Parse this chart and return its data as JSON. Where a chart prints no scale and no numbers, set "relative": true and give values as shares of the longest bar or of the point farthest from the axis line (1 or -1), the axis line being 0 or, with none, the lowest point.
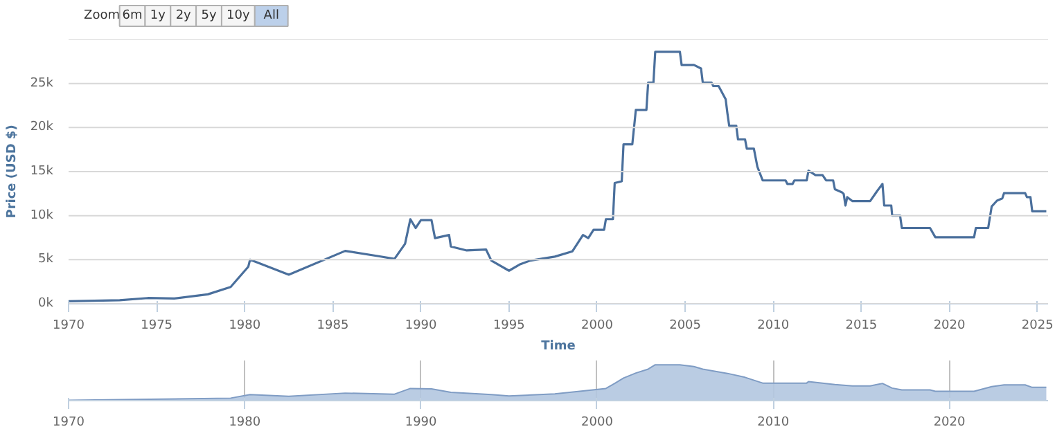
{
  "chart_data": [
    {
      "type": "line",
      "xlabel": "Time",
      "ylabel": "Price (USD $)",
      "annotations": [
        "Zoom",
        "6m",
        "1y",
        "2y",
        "5y",
        "10y",
        "All"
      ],
      "x": [
        1970,
        1972.9,
        1974.5,
        1976,
        1977.9,
        1979.2,
        1980.2,
        1980.3,
        1982.5,
        1985.7,
        1987.6,
        1988.5,
        1989.1,
        1989.4,
        1989.7,
        1990,
        1990.6,
        1990.8,
        1991.6,
        1991.7,
        1992.6,
        1993.7,
        1994,
        1995,
        1995.6,
        1996.2,
        1997.6,
        1998.6,
        1999.2,
        1999.5,
        1999.8,
        2000.4,
        2000.5,
        2000.9,
        2001,
        2001.4,
        2001.5,
        2002,
        2002.2,
        2002.8,
        2002.9,
        2003.2,
        2003.3,
        2004.7,
        2004.8,
        2005.5,
        2005.9,
        2006,
        2006.5,
        2006.6,
        2006.9,
        2007.3,
        2007.4,
        2007.5,
        2007.9,
        2008,
        2008.4,
        2008.5,
        2008.9,
        2009.1,
        2009.4,
        2010.7,
        2010.8,
        2011.1,
        2011.2,
        2011.9,
        2012,
        2012.4,
        2012.8,
        2013,
        2013.4,
        2013.5,
        2013.9,
        2014,
        2014.1,
        2014.2,
        2014.5,
        2015.5,
        2015.9,
        2016.2,
        2016.3,
        2016.7,
        2016.75,
        2017.2,
        2017.3,
        2018.9,
        2019.2,
        2021.4,
        2021.5,
        2022.2,
        2022.4,
        2022.7,
        2023,
        2023.1,
        2024.3,
        2024.4,
        2024.6,
        2024.7,
        2025.5
      ],
      "series": [
        {
          "color": "#4a6f9c",
          "values": [
            280,
            400,
            650,
            600,
            1070,
            1900,
            4200,
            5000,
            3300,
            6000,
            5400,
            5100,
            6800,
            9600,
            8600,
            9500,
            9500,
            7450,
            7800,
            6500,
            6050,
            6150,
            4900,
            3750,
            4450,
            4900,
            5350,
            5950,
            7800,
            7450,
            8400,
            8400,
            9600,
            9600,
            13700,
            13900,
            18100,
            18100,
            22000,
            22000,
            25100,
            25100,
            28600,
            28600,
            27100,
            27100,
            26700,
            25100,
            25100,
            24700,
            24700,
            23200,
            21600,
            20200,
            20200,
            18650,
            18650,
            17600,
            17600,
            15550,
            14000,
            14000,
            13600,
            13600,
            14000,
            14000,
            15100,
            14600,
            14600,
            14000,
            14000,
            13000,
            12650,
            12450,
            11150,
            12100,
            11650,
            11650,
            12800,
            13600,
            11150,
            11150,
            10000,
            10000,
            8600,
            8600,
            7550,
            7550,
            8600,
            8600,
            11050,
            11700,
            11950,
            12550,
            12550,
            12100,
            12100,
            10500,
            10500
          ]
        }
      ],
      "xlim": [
        1970,
        2025.6
      ],
      "xticks": [
        1970,
        1975,
        1980,
        1985,
        1990,
        1995,
        2000,
        2005,
        2010,
        2015,
        2020,
        2025
      ],
      "ylim": [
        0,
        30000
      ],
      "yticks": [
        {
          "value": 0,
          "label": "0k"
        },
        {
          "value": 5000,
          "label": "5k"
        },
        {
          "value": 10000,
          "label": "10k"
        },
        {
          "value": 15000,
          "label": "15k"
        },
        {
          "value": 20000,
          "label": "20k"
        },
        {
          "value": 25000,
          "label": "25k"
        },
        {
          "value": 30000,
          "label": null
        }
      ],
      "grid": "y"
    },
    {
      "type": "area",
      "relative": true,
      "tick_labels": "x",
      "grid": "x",
      "x": [
        1970,
        1979.2,
        1980.3,
        1982.5,
        1985.7,
        1988.5,
        1989.4,
        1990.6,
        1991.7,
        1994,
        1995,
        1997.6,
        1999.2,
        2000.5,
        2001,
        2001.5,
        2002.2,
        2002.9,
        2003.3,
        2004.7,
        2005.5,
        2006,
        2007.4,
        2008.4,
        2009.4,
        2011.9,
        2012,
        2013.5,
        2014.5,
        2015.5,
        2016.2,
        2016.75,
        2017.3,
        2018.9,
        2019.2,
        2021.4,
        2022.4,
        2023.1,
        2024.3,
        2024.7,
        2025.5
      ],
      "series": [
        {
          "color": "#b3c6e0",
          "values": [
            0.01,
            0.07,
            0.17,
            0.12,
            0.21,
            0.18,
            0.34,
            0.33,
            0.23,
            0.17,
            0.13,
            0.19,
            0.27,
            0.34,
            0.48,
            0.63,
            0.77,
            0.88,
            1,
            1,
            0.95,
            0.88,
            0.76,
            0.65,
            0.49,
            0.49,
            0.53,
            0.45,
            0.41,
            0.41,
            0.48,
            0.35,
            0.3,
            0.3,
            0.26,
            0.26,
            0.39,
            0.44,
            0.44,
            0.37,
            0.37
          ]
        }
      ],
      "xlim": [
        1970,
        2025.6
      ],
      "xticks": [
        1970,
        1980,
        1990,
        2000,
        2010,
        2020
      ]
    }
  ]
}
